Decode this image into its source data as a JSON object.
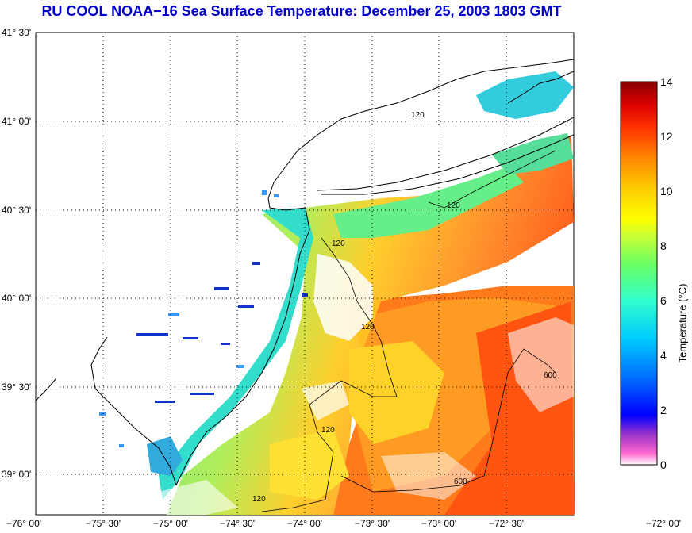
{
  "title": "RU COOL  NOAA−16  Sea Surface Temperature:  December 25, 2003 1803 GMT",
  "lat_labels": [
    "41° 30'",
    "41° 00'",
    "40° 30'",
    "40° 00'",
    "39° 30'",
    "39° 00'"
  ],
  "lon_labels": [
    "−76° 00'",
    "−75° 30'",
    "−75° 00'",
    "−74° 30'",
    "−74° 00'",
    "−73° 30'",
    "−73° 00'",
    "−72° 30'",
    "−72° 00'"
  ],
  "contour_labels": [
    "120",
    "120",
    "120",
    "120",
    "120",
    "120",
    "600",
    "600"
  ],
  "colorbar": {
    "title": "Temperature (°C)",
    "ticks": [
      "14",
      "12",
      "10",
      "8",
      "6",
      "4",
      "2",
      "0"
    ],
    "range": [
      0,
      14
    ],
    "colors": [
      "#ff66cc",
      "#9933cc",
      "#0000ff",
      "#0066ff",
      "#00ccff",
      "#33ffcc",
      "#66ff66",
      "#ccff33",
      "#ffff00",
      "#ffcc00",
      "#ff9900",
      "#ff5500",
      "#ff0000",
      "#cc0000",
      "#880000"
    ]
  },
  "chart_data": {
    "type": "heatmap",
    "title": "RU COOL  NOAA−16  Sea Surface Temperature:  December 25, 2003 1803 GMT",
    "xlabel": "",
    "ylabel": "",
    "xlim": [
      -76.0,
      -72.0
    ],
    "ylim": [
      38.75,
      41.5
    ],
    "colorbar_label": "Temperature (°C)",
    "colorbar_range": [
      0,
      14
    ],
    "grid": true
  }
}
